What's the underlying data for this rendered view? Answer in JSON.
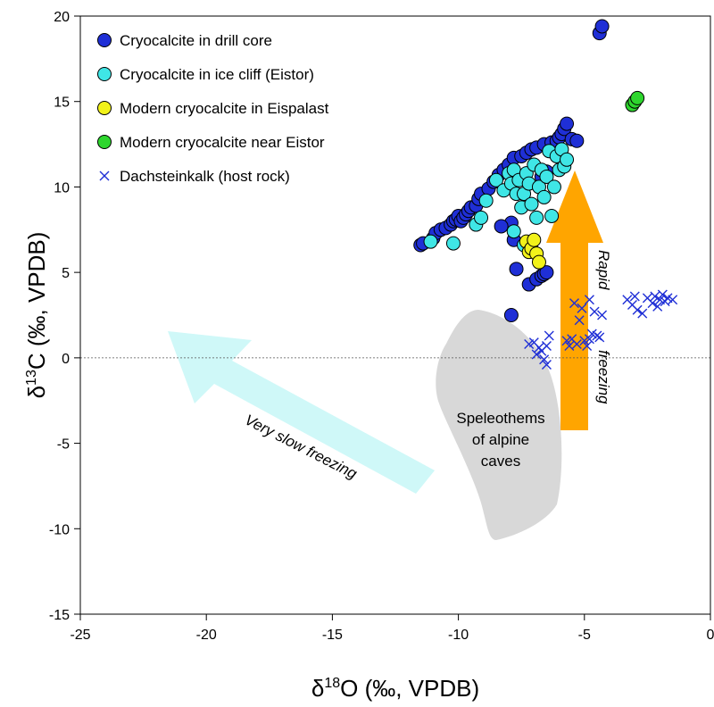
{
  "chart_data": {
    "type": "scatter",
    "title": "",
    "xlabel": {
      "prefix": "δ",
      "sup": "18",
      "rest": "O (‰, VPDB)"
    },
    "ylabel": {
      "prefix": "δ",
      "sup": "13",
      "rest": "C (‰, VPDB)"
    },
    "xlim": [
      -25,
      0
    ],
    "ylim": [
      -15,
      20
    ],
    "xticks": [
      -25,
      -20,
      -15,
      -10,
      -5,
      0
    ],
    "yticks": [
      -15,
      -10,
      -5,
      0,
      5,
      10,
      15,
      20
    ],
    "legend_position": "top-left",
    "zero_line": true,
    "series": [
      {
        "name": "Cryocalcite in drill core",
        "marker": "circle",
        "color": "#1f2fd6",
        "points": [
          [
            -11.5,
            6.6
          ],
          [
            -11.4,
            6.7
          ],
          [
            -11.0,
            7.0
          ],
          [
            -10.9,
            7.3
          ],
          [
            -10.7,
            7.5
          ],
          [
            -10.5,
            7.6
          ],
          [
            -10.3,
            7.8
          ],
          [
            -10.2,
            8.0
          ],
          [
            -10.1,
            8.1
          ],
          [
            -10.0,
            8.3
          ],
          [
            -9.9,
            8.0
          ],
          [
            -9.8,
            8.2
          ],
          [
            -9.7,
            8.4
          ],
          [
            -9.6,
            8.6
          ],
          [
            -9.5,
            8.8
          ],
          [
            -9.3,
            8.9
          ],
          [
            -9.2,
            9.3
          ],
          [
            -9.1,
            9.6
          ],
          [
            -8.8,
            9.9
          ],
          [
            -8.6,
            10.3
          ],
          [
            -8.4,
            10.7
          ],
          [
            -8.2,
            11.0
          ],
          [
            -8.0,
            11.3
          ],
          [
            -7.8,
            11.7
          ],
          [
            -7.5,
            11.8
          ],
          [
            -7.3,
            12.0
          ],
          [
            -7.1,
            12.2
          ],
          [
            -6.9,
            12.3
          ],
          [
            -6.6,
            12.5
          ],
          [
            -6.3,
            12.6
          ],
          [
            -6.1,
            12.7
          ],
          [
            -6.0,
            12.9
          ],
          [
            -5.9,
            13.1
          ],
          [
            -5.8,
            13.4
          ],
          [
            -5.7,
            13.7
          ],
          [
            -5.5,
            12.8
          ],
          [
            -5.3,
            12.7
          ],
          [
            -6.5,
            10.9
          ],
          [
            -6.7,
            10.6
          ],
          [
            -7.9,
            7.9
          ],
          [
            -7.8,
            6.9
          ],
          [
            -7.7,
            5.2
          ],
          [
            -7.2,
            4.3
          ],
          [
            -6.9,
            4.6
          ],
          [
            -6.7,
            4.8
          ],
          [
            -6.6,
            4.9
          ],
          [
            -6.5,
            5.0
          ],
          [
            -7.9,
            2.5
          ],
          [
            -8.3,
            7.7
          ],
          [
            -4.4,
            19.0
          ],
          [
            -4.3,
            19.4
          ]
        ]
      },
      {
        "name": "Cryocalcite in ice cliff  (Eistor)",
        "marker": "circle",
        "color": "#3fe6e6",
        "points": [
          [
            -11.1,
            6.8
          ],
          [
            -10.2,
            6.7
          ],
          [
            -9.3,
            7.8
          ],
          [
            -9.1,
            8.2
          ],
          [
            -8.9,
            9.2
          ],
          [
            -8.5,
            10.4
          ],
          [
            -8.2,
            9.8
          ],
          [
            -8.0,
            10.8
          ],
          [
            -7.9,
            10.2
          ],
          [
            -7.8,
            11.0
          ],
          [
            -7.7,
            9.6
          ],
          [
            -7.6,
            10.4
          ],
          [
            -7.5,
            8.8
          ],
          [
            -7.4,
            9.6
          ],
          [
            -7.3,
            10.8
          ],
          [
            -7.2,
            10.2
          ],
          [
            -7.1,
            9.0
          ],
          [
            -7.0,
            11.3
          ],
          [
            -6.9,
            8.2
          ],
          [
            -6.8,
            10.0
          ],
          [
            -6.7,
            11.0
          ],
          [
            -6.6,
            9.4
          ],
          [
            -6.5,
            10.6
          ],
          [
            -6.4,
            12.1
          ],
          [
            -6.3,
            8.3
          ],
          [
            -6.2,
            10.0
          ],
          [
            -6.1,
            11.8
          ],
          [
            -6.0,
            11.0
          ],
          [
            -5.9,
            12.2
          ],
          [
            -5.8,
            11.2
          ],
          [
            -5.7,
            11.6
          ],
          [
            -7.4,
            6.6
          ],
          [
            -7.8,
            7.4
          ]
        ]
      },
      {
        "name": "Modern cryocalcite in Eispalast",
        "marker": "circle",
        "color": "#f2f21a",
        "points": [
          [
            -7.3,
            6.8
          ],
          [
            -7.2,
            6.2
          ],
          [
            -7.1,
            6.4
          ],
          [
            -7.0,
            6.9
          ],
          [
            -6.9,
            6.1
          ],
          [
            -6.8,
            5.6
          ]
        ]
      },
      {
        "name": "Modern cryocalcite near Eistor",
        "marker": "circle",
        "color": "#2ed62e",
        "points": [
          [
            -3.1,
            14.8
          ],
          [
            -3.0,
            15.0
          ],
          [
            -2.9,
            15.2
          ]
        ]
      },
      {
        "name": "Dachsteinkalk (host rock)",
        "marker": "x",
        "color": "#1f2fd6",
        "points": [
          [
            -7.2,
            0.8
          ],
          [
            -7.0,
            0.9
          ],
          [
            -6.9,
            0.2
          ],
          [
            -6.8,
            0.6
          ],
          [
            -6.7,
            0.4
          ],
          [
            -6.6,
            -0.1
          ],
          [
            -6.5,
            0.7
          ],
          [
            -6.5,
            -0.4
          ],
          [
            -6.4,
            1.3
          ],
          [
            -5.7,
            1.0
          ],
          [
            -5.6,
            0.7
          ],
          [
            -5.5,
            1.1
          ],
          [
            -5.4,
            3.2
          ],
          [
            -5.3,
            0.8
          ],
          [
            -5.2,
            2.2
          ],
          [
            -5.1,
            2.9
          ],
          [
            -5.0,
            1.0
          ],
          [
            -4.9,
            0.7
          ],
          [
            -4.8,
            1.1
          ],
          [
            -4.8,
            3.4
          ],
          [
            -4.7,
            1.4
          ],
          [
            -4.6,
            2.7
          ],
          [
            -4.5,
            1.3
          ],
          [
            -4.4,
            1.2
          ],
          [
            -4.3,
            2.5
          ],
          [
            -3.3,
            3.4
          ],
          [
            -3.1,
            3.1
          ],
          [
            -3.0,
            3.6
          ],
          [
            -2.9,
            2.8
          ],
          [
            -2.7,
            2.6
          ],
          [
            -2.5,
            3.5
          ],
          [
            -2.3,
            3.2
          ],
          [
            -2.2,
            3.6
          ],
          [
            -2.1,
            3.0
          ],
          [
            -2.0,
            3.4
          ],
          [
            -1.9,
            3.7
          ],
          [
            -1.8,
            3.3
          ],
          [
            -1.7,
            3.5
          ],
          [
            -1.5,
            3.4
          ]
        ]
      }
    ],
    "annotations": {
      "very_slow_freezing": "Very slow freezing",
      "rapid": "Rapid",
      "freezing": "freezing",
      "speleothems_line1": "Speleothems",
      "speleothems_line2": "of alpine",
      "speleothems_line3": "caves"
    },
    "region_colors": {
      "speleothem_field": "#d8d8d8",
      "slow_arrow": "#cff8f8",
      "rapid_arrow": "#ffa500"
    }
  }
}
